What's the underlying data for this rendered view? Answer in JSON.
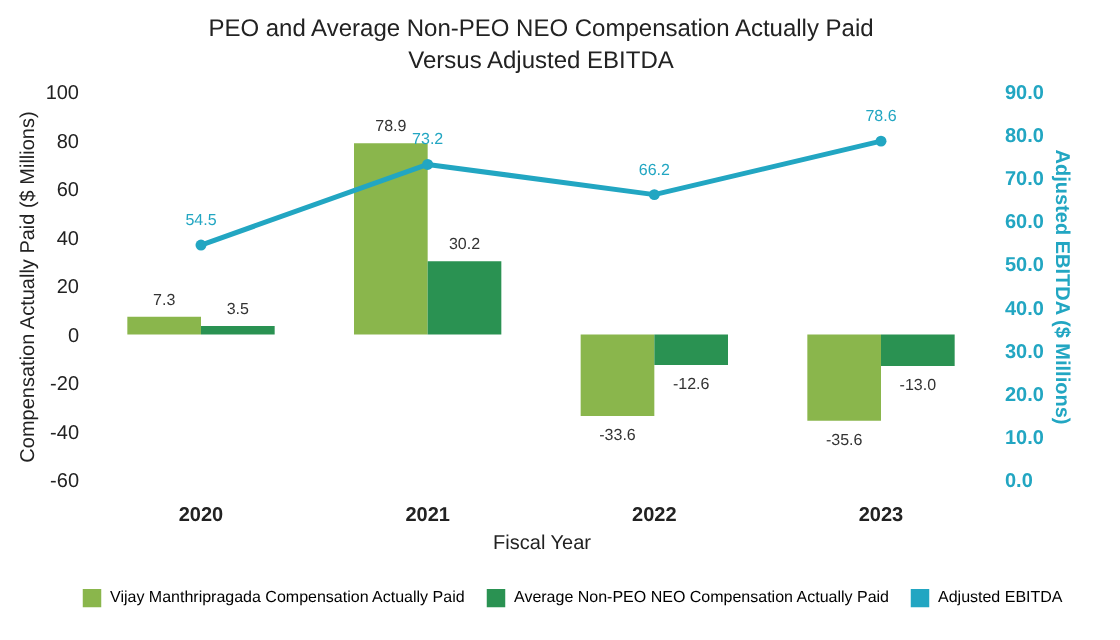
{
  "chart_data": {
    "type": "bar",
    "title": "PEO and Average Non-PEO NEO Compensation Actually Paid Versus Adjusted EBITDA",
    "xlabel": "Fiscal Year",
    "ylabel": "Compensation Actually Paid ($ Millions)",
    "y2label": "Adjusted EBITDA ($ Millions)",
    "categories": [
      "2020",
      "2021",
      "2022",
      "2023"
    ],
    "series": [
      {
        "name": "Vijay Manthripragada Compensation Actually Paid",
        "color": "#8ab64c",
        "values": [
          7.3,
          78.9,
          -33.6,
          -35.6
        ],
        "value_labels": [
          "7.3",
          "78.9",
          "-33.6",
          "-35.6"
        ]
      },
      {
        "name": "Average Non-PEO NEO Compensation Actually Paid",
        "color": "#2a9252",
        "values": [
          3.5,
          30.2,
          -12.6,
          -13.0
        ],
        "value_labels": [
          "3.5",
          "30.2",
          "-12.6",
          "-13.0"
        ]
      },
      {
        "name": "Adjusted EBITDA",
        "type": "line",
        "axis": "y2",
        "color": "#22a6c2",
        "marker": "circle",
        "values": [
          54.5,
          73.2,
          66.2,
          78.6
        ],
        "value_labels": [
          "54.5",
          "73.2",
          "66.2",
          "78.6"
        ]
      }
    ],
    "ylim": [
      -60,
      100
    ],
    "yticks": [
      -60,
      -40,
      -20,
      0,
      20,
      40,
      60,
      80,
      100
    ],
    "y2lim": [
      0,
      90
    ],
    "y2ticks": [
      {
        "value": 0,
        "label": "0.0"
      },
      {
        "value": 10,
        "label": "10.0"
      },
      {
        "value": 20,
        "label": "20.0"
      },
      {
        "value": 30,
        "label": "30.0"
      },
      {
        "value": 40,
        "label": "40.0"
      },
      {
        "value": 50,
        "label": "50.0"
      },
      {
        "value": 60,
        "label": "60.0"
      },
      {
        "value": 70,
        "label": "70.0"
      },
      {
        "value": 80,
        "label": "80.0"
      },
      {
        "value": 90,
        "label": "90.0"
      }
    ],
    "grid": false,
    "legend": "bottom"
  }
}
